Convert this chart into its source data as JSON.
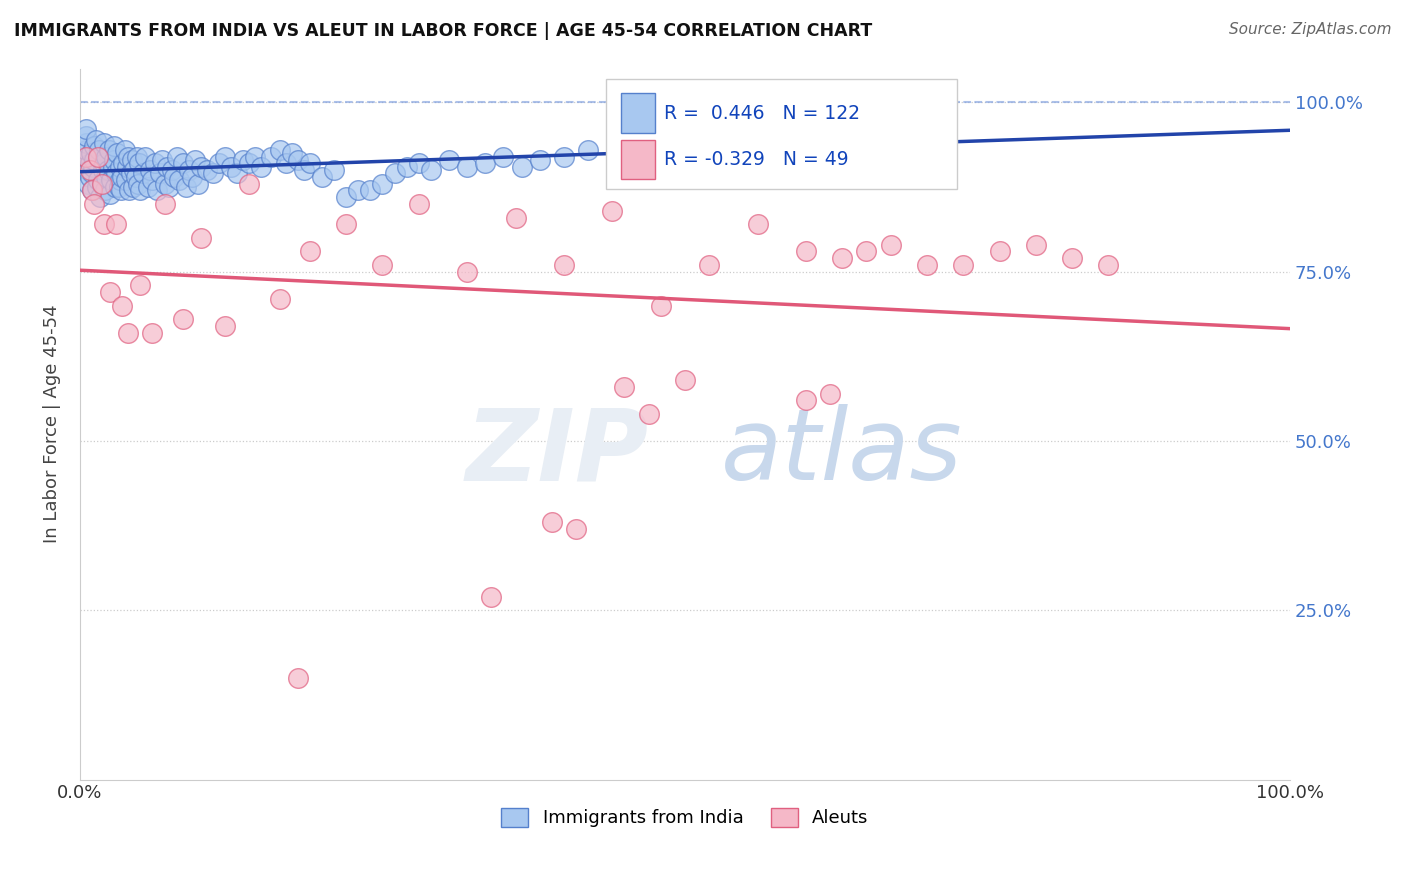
{
  "title": "IMMIGRANTS FROM INDIA VS ALEUT IN LABOR FORCE | AGE 45-54 CORRELATION CHART",
  "source": "Source: ZipAtlas.com",
  "ylabel": "In Labor Force | Age 45-54",
  "blue_R": 0.446,
  "blue_N": 122,
  "pink_R": -0.329,
  "pink_N": 49,
  "blue_color": "#A8C8F0",
  "pink_color": "#F5B8C8",
  "blue_edge_color": "#5580CC",
  "pink_edge_color": "#E06080",
  "blue_line_color": "#2244AA",
  "pink_line_color": "#E05878",
  "legend_label_blue": "Immigrants from India",
  "legend_label_pink": "Aleuts",
  "blue_scatter_x": [
    0.005,
    0.005,
    0.005,
    0.005,
    0.005,
    0.007,
    0.007,
    0.008,
    0.008,
    0.009,
    0.01,
    0.01,
    0.011,
    0.012,
    0.012,
    0.013,
    0.014,
    0.015,
    0.015,
    0.016,
    0.017,
    0.018,
    0.019,
    0.02,
    0.02,
    0.021,
    0.022,
    0.022,
    0.023,
    0.024,
    0.025,
    0.026,
    0.027,
    0.028,
    0.028,
    0.029,
    0.03,
    0.031,
    0.032,
    0.033,
    0.033,
    0.034,
    0.035,
    0.036,
    0.037,
    0.038,
    0.039,
    0.04,
    0.041,
    0.042,
    0.043,
    0.044,
    0.045,
    0.046,
    0.047,
    0.048,
    0.049,
    0.05,
    0.052,
    0.054,
    0.056,
    0.058,
    0.06,
    0.062,
    0.064,
    0.066,
    0.068,
    0.07,
    0.072,
    0.074,
    0.076,
    0.078,
    0.08,
    0.082,
    0.085,
    0.088,
    0.09,
    0.093,
    0.095,
    0.098,
    0.1,
    0.105,
    0.11,
    0.115,
    0.12,
    0.125,
    0.13,
    0.135,
    0.14,
    0.145,
    0.15,
    0.158,
    0.165,
    0.17,
    0.175,
    0.18,
    0.185,
    0.19,
    0.2,
    0.21,
    0.22,
    0.23,
    0.24,
    0.25,
    0.26,
    0.27,
    0.28,
    0.29,
    0.305,
    0.32,
    0.335,
    0.35,
    0.365,
    0.38,
    0.4,
    0.42,
    0.445,
    0.47,
    0.5,
    0.53,
    0.56,
    0.6
  ],
  "blue_scatter_y": [
    0.92,
    0.93,
    0.94,
    0.95,
    0.96,
    0.88,
    0.9,
    0.89,
    0.91,
    0.925,
    0.87,
    0.895,
    0.905,
    0.915,
    0.935,
    0.945,
    0.875,
    0.885,
    0.92,
    0.93,
    0.86,
    0.88,
    0.9,
    0.91,
    0.94,
    0.87,
    0.89,
    0.92,
    0.9,
    0.93,
    0.865,
    0.885,
    0.905,
    0.915,
    0.935,
    0.875,
    0.895,
    0.925,
    0.875,
    0.885,
    0.905,
    0.87,
    0.89,
    0.91,
    0.93,
    0.885,
    0.905,
    0.92,
    0.87,
    0.895,
    0.915,
    0.875,
    0.9,
    0.89,
    0.92,
    0.88,
    0.91,
    0.87,
    0.895,
    0.92,
    0.875,
    0.9,
    0.885,
    0.91,
    0.87,
    0.895,
    0.915,
    0.88,
    0.905,
    0.875,
    0.9,
    0.89,
    0.92,
    0.885,
    0.91,
    0.875,
    0.9,
    0.89,
    0.915,
    0.88,
    0.905,
    0.9,
    0.895,
    0.91,
    0.92,
    0.905,
    0.895,
    0.915,
    0.91,
    0.92,
    0.905,
    0.92,
    0.93,
    0.91,
    0.925,
    0.915,
    0.9,
    0.91,
    0.89,
    0.9,
    0.86,
    0.87,
    0.87,
    0.88,
    0.895,
    0.905,
    0.91,
    0.9,
    0.915,
    0.905,
    0.91,
    0.92,
    0.905,
    0.915,
    0.92,
    0.93,
    0.94,
    0.94,
    0.95,
    0.95,
    0.96,
    0.97
  ],
  "pink_scatter_x": [
    0.005,
    0.008,
    0.01,
    0.012,
    0.015,
    0.018,
    0.02,
    0.025,
    0.03,
    0.035,
    0.04,
    0.05,
    0.06,
    0.07,
    0.085,
    0.1,
    0.12,
    0.14,
    0.165,
    0.19,
    0.22,
    0.25,
    0.28,
    0.32,
    0.36,
    0.4,
    0.44,
    0.48,
    0.52,
    0.56,
    0.6,
    0.63,
    0.65,
    0.67,
    0.7,
    0.73,
    0.76,
    0.79,
    0.82,
    0.85,
    0.6,
    0.62,
    0.45,
    0.47,
    0.5,
    0.39,
    0.41,
    0.34,
    0.18
  ],
  "pink_scatter_y": [
    0.92,
    0.9,
    0.87,
    0.85,
    0.92,
    0.88,
    0.82,
    0.72,
    0.82,
    0.7,
    0.66,
    0.73,
    0.66,
    0.85,
    0.68,
    0.8,
    0.67,
    0.88,
    0.71,
    0.78,
    0.82,
    0.76,
    0.85,
    0.75,
    0.83,
    0.76,
    0.84,
    0.7,
    0.76,
    0.82,
    0.78,
    0.77,
    0.78,
    0.79,
    0.76,
    0.76,
    0.78,
    0.79,
    0.77,
    0.76,
    0.56,
    0.57,
    0.58,
    0.54,
    0.59,
    0.38,
    0.37,
    0.27,
    0.15
  ]
}
